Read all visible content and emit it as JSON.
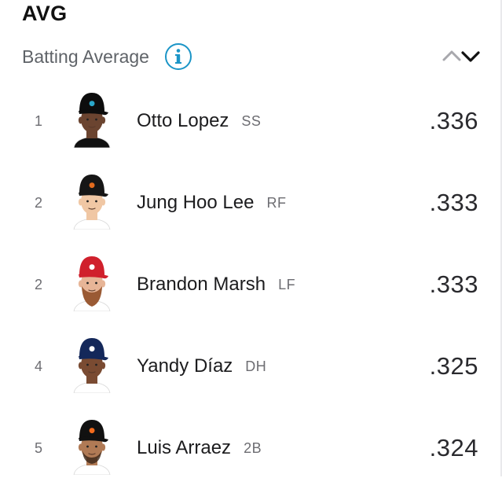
{
  "header": {
    "title": "AVG",
    "subtitle": "Batting Average",
    "info_icon": "info-icon",
    "sort_icon": "chevron-up-down-icon"
  },
  "colors": {
    "accent": "#1b95c7",
    "text_primary": "#1c1c1e",
    "text_secondary": "#6d6d72"
  },
  "players": [
    {
      "rank": "1",
      "name": "Otto Lopez",
      "position": "SS",
      "value": ".336",
      "cap_color": "#0d0d0d",
      "cap_logo_color": "#2aa7c9",
      "skin": "#6b4430",
      "jersey": "#111111",
      "beard": "none"
    },
    {
      "rank": "2",
      "name": "Jung Hoo Lee",
      "position": "RF",
      "value": ".333",
      "cap_color": "#161616",
      "cap_logo_color": "#e36b1e",
      "skin": "#f0c7a4",
      "jersey": "#ffffff",
      "beard": "none"
    },
    {
      "rank": "2",
      "name": "Brandon Marsh",
      "position": "LF",
      "value": ".333",
      "cap_color": "#d0202c",
      "cap_logo_color": "#ffffff",
      "skin": "#e7b597",
      "jersey": "#ffffff",
      "beard": "full"
    },
    {
      "rank": "4",
      "name": "Yandy Díaz",
      "position": "DH",
      "value": ".325",
      "cap_color": "#14285a",
      "cap_logo_color": "#ffffff",
      "skin": "#7a4b32",
      "jersey": "#ffffff",
      "beard": "goatee"
    },
    {
      "rank": "5",
      "name": "Luis Arraez",
      "position": "2B",
      "value": ".324",
      "cap_color": "#111111",
      "cap_logo_color": "#f26b1d",
      "skin": "#b07a55",
      "jersey": "#ffffff",
      "beard": "short"
    }
  ]
}
